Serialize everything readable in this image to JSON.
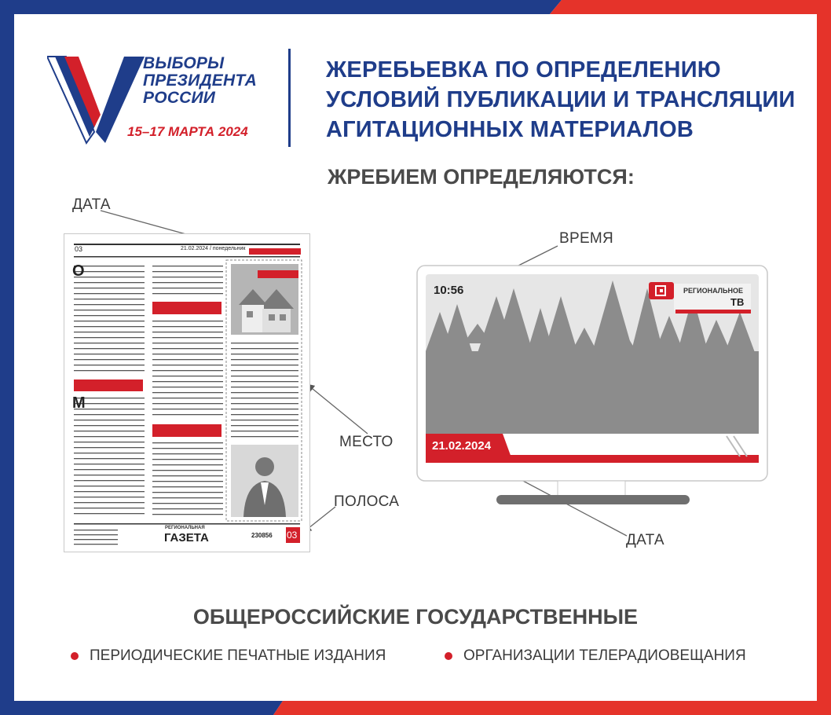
{
  "logo": {
    "line1": "ВЫБОРЫ",
    "line2": "ПРЕЗИДЕНТА",
    "line3": "РОССИИ",
    "dates": "15–17 МАРТА 2024"
  },
  "heading": {
    "line1": "ЖЕРЕБЬЕВКА ПО ОПРЕДЕЛЕНИЮ",
    "line2": "УСЛОВИЙ ПУБЛИКАЦИИ И ТРАНСЛЯЦИИ",
    "line3": "АГИТАЦИОННЫХ МАТЕРИАЛОВ"
  },
  "subheading": "ЖРЕБИЕМ ОПРЕДЕЛЯЮТСЯ:",
  "newspaper": {
    "page_num_top": "03",
    "date_line": "21.02.2024 / понедельник",
    "letter_o": "О",
    "letter_m": "М",
    "brand_small": "РЕГИОНАЛЬНАЯ",
    "brand_big": "ГАЗЕТА",
    "issue_num": "230856",
    "page_num_bottom": "03"
  },
  "tv": {
    "time": "10:56",
    "channel_small": "РЕГИОНАЛЬНОЕ",
    "channel_big": "ТВ",
    "date": "21.02.2024"
  },
  "labels": {
    "date_news": "ДАТА",
    "time": "ВРЕМЯ",
    "place": "МЕСТО",
    "strip": "ПОЛОСА",
    "date_tv": "ДАТА"
  },
  "footer": {
    "title": "ОБЩЕРОССИЙСКИЕ ГОСУДАРСТВЕННЫЕ",
    "bullet1": "ПЕРИОДИЧЕСКИЕ ПЕЧАТНЫЕ ИЗДАНИЯ",
    "bullet2": "ОРГАНИЗАЦИИ ТЕЛЕРАДИОВЕЩАНИЯ"
  },
  "colors": {
    "brand_blue": "#1f3d8a",
    "brand_red": "#d3202a",
    "text_gray": "#4a4a4a"
  }
}
